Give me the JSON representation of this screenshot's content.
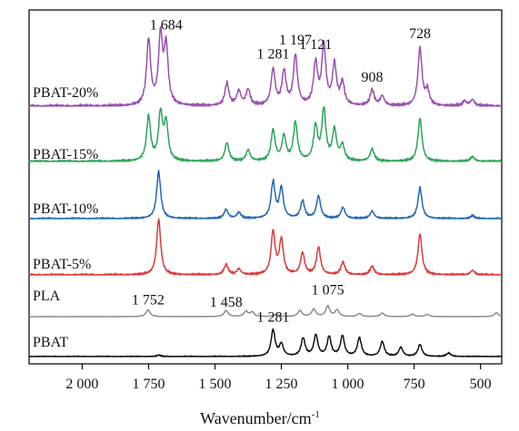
{
  "chart_data": {
    "type": "line",
    "xlabel": "Wavenumber/cm",
    "xlabel_superscript": "-1",
    "xlim": [
      2200,
      420
    ],
    "x_reversed": true,
    "x_ticks": [
      {
        "value": 2000,
        "label": "2 000"
      },
      {
        "value": 1750,
        "label": "1 750"
      },
      {
        "value": 1500,
        "label": "1 500"
      },
      {
        "value": 1250,
        "label": "1 250"
      },
      {
        "value": 1000,
        "label": "1 000"
      },
      {
        "value": 750,
        "label": "750"
      },
      {
        "value": 500,
        "label": "500"
      }
    ],
    "ylabel": "",
    "grid": false,
    "colors": {
      "PBAT-20%": "#9b4fb0",
      "PBAT-15%": "#2fa35a",
      "PBAT-10%": "#2366b8",
      "PBAT-5%": "#dd3a3a",
      "PLA": "#8c8c8c",
      "PBAT": "#111111"
    },
    "series": [
      {
        "name": "PBAT-20%",
        "peaks": [
          [
            1750,
            0.82
          ],
          [
            1705,
            0.85
          ],
          [
            1684,
            0.72
          ],
          [
            1455,
            0.28
          ],
          [
            1410,
            0.18
          ],
          [
            1375,
            0.2
          ],
          [
            1281,
            0.45
          ],
          [
            1240,
            0.42
          ],
          [
            1197,
            0.62
          ],
          [
            1121,
            0.52
          ],
          [
            1090,
            0.74
          ],
          [
            1050,
            0.5
          ],
          [
            1020,
            0.28
          ],
          [
            908,
            0.2
          ],
          [
            870,
            0.12
          ],
          [
            728,
            0.72
          ],
          [
            700,
            0.18
          ],
          [
            560,
            0.06
          ],
          [
            530,
            0.08
          ]
        ],
        "annotations": [
          {
            "x": 1684,
            "text": "1 684"
          },
          {
            "x": 1281,
            "text": "1 281"
          },
          {
            "x": 1197,
            "text": "1 197"
          },
          {
            "x": 1121,
            "text": "1 121"
          },
          {
            "x": 908,
            "text": "908"
          },
          {
            "x": 728,
            "text": "728"
          }
        ]
      },
      {
        "name": "PBAT-15%",
        "peaks": [
          [
            1750,
            0.72
          ],
          [
            1705,
            0.75
          ],
          [
            1684,
            0.6
          ],
          [
            1455,
            0.3
          ],
          [
            1375,
            0.18
          ],
          [
            1281,
            0.5
          ],
          [
            1240,
            0.4
          ],
          [
            1197,
            0.62
          ],
          [
            1121,
            0.55
          ],
          [
            1090,
            0.82
          ],
          [
            1050,
            0.5
          ],
          [
            1020,
            0.25
          ],
          [
            908,
            0.2
          ],
          [
            728,
            0.7
          ],
          [
            530,
            0.08
          ]
        ],
        "annotations": []
      },
      {
        "name": "PBAT-10%",
        "peaks": [
          [
            1712,
            0.95
          ],
          [
            1458,
            0.18
          ],
          [
            1410,
            0.12
          ],
          [
            1281,
            0.72
          ],
          [
            1250,
            0.6
          ],
          [
            1170,
            0.35
          ],
          [
            1110,
            0.45
          ],
          [
            1018,
            0.22
          ],
          [
            908,
            0.15
          ],
          [
            728,
            0.62
          ],
          [
            530,
            0.06
          ]
        ],
        "annotations": []
      },
      {
        "name": "PBAT-5%",
        "peaks": [
          [
            1712,
            0.98
          ],
          [
            1458,
            0.18
          ],
          [
            1410,
            0.1
          ],
          [
            1281,
            0.75
          ],
          [
            1250,
            0.6
          ],
          [
            1170,
            0.38
          ],
          [
            1110,
            0.48
          ],
          [
            1018,
            0.22
          ],
          [
            908,
            0.15
          ],
          [
            728,
            0.72
          ],
          [
            530,
            0.08
          ]
        ],
        "annotations": []
      },
      {
        "name": "PLA",
        "peaks": [
          [
            1752,
            0.32
          ],
          [
            1458,
            0.28
          ],
          [
            1383,
            0.24
          ],
          [
            1360,
            0.2
          ],
          [
            1267,
            0.1
          ],
          [
            1180,
            0.28
          ],
          [
            1128,
            0.34
          ],
          [
            1075,
            0.48
          ],
          [
            1040,
            0.3
          ],
          [
            956,
            0.14
          ],
          [
            870,
            0.16
          ],
          [
            756,
            0.12
          ],
          [
            700,
            0.1
          ],
          [
            440,
            0.18
          ]
        ],
        "annotations": [
          {
            "x": 1752,
            "text": "1 752"
          },
          {
            "x": 1458,
            "text": "1 458"
          },
          {
            "x": 1075,
            "text": "1 075"
          }
        ]
      },
      {
        "name": "PBAT",
        "peaks": [
          [
            1712,
            0.05
          ],
          [
            1281,
            0.88
          ],
          [
            1250,
            0.4
          ],
          [
            1168,
            0.6
          ],
          [
            1120,
            0.7
          ],
          [
            1070,
            0.65
          ],
          [
            1020,
            0.68
          ],
          [
            956,
            0.62
          ],
          [
            870,
            0.5
          ],
          [
            800,
            0.3
          ],
          [
            728,
            0.4
          ],
          [
            620,
            0.12
          ]
        ],
        "annotations": [
          {
            "x": 1281,
            "text": "1 281"
          }
        ]
      }
    ]
  }
}
